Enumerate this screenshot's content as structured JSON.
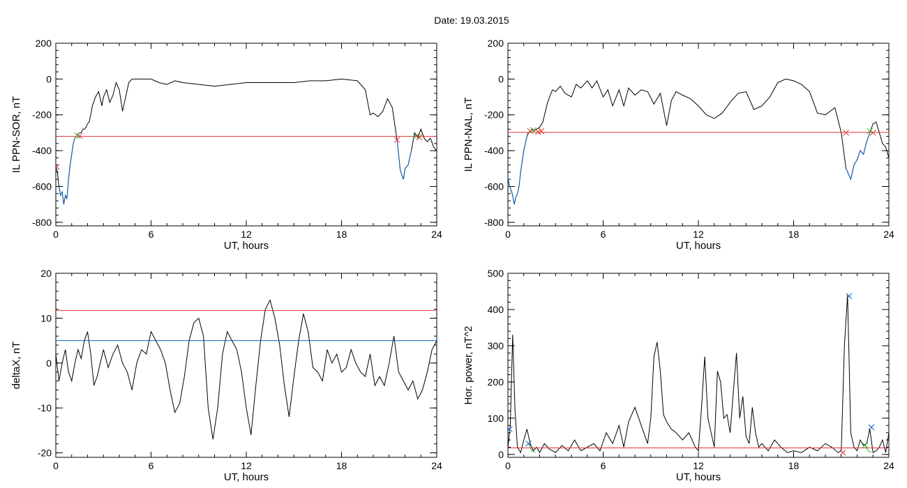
{
  "header": {
    "date_label": "Date:  19.03.2015"
  },
  "colors": {
    "curve": "#000000",
    "threshold": "#e03030",
    "blue": "#1060c0",
    "green": "#30c030",
    "frame": "#000000"
  },
  "chart_data": [
    {
      "id": "p1",
      "type": "line",
      "ylabel": "IL PPN-SOR, nT",
      "xlabel": "UT, hours",
      "xlim": [
        0,
        24
      ],
      "ylim": [
        -820,
        200
      ],
      "xticks": [
        0,
        6,
        12,
        18,
        24
      ],
      "yticks": [
        -800,
        -600,
        -400,
        -200,
        0,
        200
      ],
      "grid": false,
      "series": [
        {
          "role": "main",
          "color": "#000000",
          "x": [
            0,
            0.1,
            0.2,
            0.3,
            0.4,
            0.5,
            0.6,
            0.7,
            0.8,
            0.9,
            1.0,
            1.1,
            1.2,
            1.3,
            1.4,
            1.5,
            1.6,
            1.7,
            1.8,
            1.9,
            2.0,
            2.1,
            2.2,
            2.3,
            2.5,
            2.7,
            2.9,
            3.0,
            3.2,
            3.4,
            3.6,
            3.8,
            4.0,
            4.2,
            4.4,
            4.6,
            4.8,
            5.0,
            5.5,
            6.0,
            6.5,
            7.0,
            7.5,
            8.0,
            9.0,
            10.0,
            11.0,
            12.0,
            13.0,
            14.0,
            15.0,
            16.0,
            17.0,
            18.0,
            19.0,
            19.5,
            19.8,
            20.0,
            20.3,
            20.6,
            20.9,
            21.2,
            21.5,
            21.7,
            21.9,
            22.0,
            22.2,
            22.4,
            22.6,
            22.8,
            23.0,
            23.2,
            23.4,
            23.6,
            23.8,
            24.0
          ],
          "y": [
            -490,
            -520,
            -600,
            -650,
            -630,
            -700,
            -650,
            -670,
            -560,
            -480,
            -420,
            -360,
            -330,
            -320,
            -310,
            -300,
            -300,
            -280,
            -280,
            -270,
            -250,
            -240,
            -200,
            -150,
            -100,
            -70,
            -150,
            -100,
            -60,
            -130,
            -90,
            -20,
            -60,
            -180,
            -100,
            -20,
            0,
            0,
            0,
            0,
            -20,
            -30,
            -10,
            -20,
            -30,
            -40,
            -30,
            -20,
            -20,
            -20,
            -20,
            -10,
            -10,
            0,
            -10,
            -60,
            -200,
            -190,
            -210,
            -180,
            -110,
            -160,
            -340,
            -510,
            -560,
            -500,
            -480,
            -400,
            -300,
            -330,
            -280,
            -330,
            -350,
            -330,
            -380,
            -400
          ]
        },
        {
          "role": "below-threshold",
          "color": "#1060c0",
          "x": [
            0.2,
            0.3,
            0.4,
            0.5,
            0.6,
            0.7,
            0.8,
            0.9,
            1.0,
            1.1,
            1.2,
            1.3
          ],
          "y": [
            -600,
            -650,
            -630,
            -700,
            -650,
            -670,
            -560,
            -480,
            -420,
            -360,
            -330,
            -320
          ]
        },
        {
          "role": "below-threshold",
          "color": "#1060c0",
          "x": [
            21.5,
            21.7,
            21.9,
            22.0,
            22.2,
            22.4
          ],
          "y": [
            -340,
            -510,
            -560,
            -500,
            -480,
            -400
          ]
        },
        {
          "role": "threshold",
          "color": "#e03030",
          "x": [
            0,
            24
          ],
          "y": [
            -320,
            -320
          ]
        }
      ],
      "markers": [
        {
          "x": 0.05,
          "y": -490,
          "color": "#e03030"
        },
        {
          "x": 1.35,
          "y": -315,
          "color": "#30c030"
        },
        {
          "x": 1.5,
          "y": -318,
          "color": "#e03030"
        },
        {
          "x": 21.5,
          "y": -340,
          "color": "#e03030"
        },
        {
          "x": 22.7,
          "y": -320,
          "color": "#30c030"
        },
        {
          "x": 22.9,
          "y": -325,
          "color": "#e03030"
        }
      ]
    },
    {
      "id": "p2",
      "type": "line",
      "ylabel": "IL PPN-NAL, nT",
      "xlabel": "UT, hours",
      "xlim": [
        0,
        24
      ],
      "ylim": [
        -820,
        200
      ],
      "xticks": [
        0,
        6,
        12,
        18,
        24
      ],
      "yticks": [
        -800,
        -600,
        -400,
        -200,
        0,
        200
      ],
      "grid": false,
      "series": [
        {
          "role": "main",
          "color": "#000000",
          "x": [
            0,
            0.1,
            0.2,
            0.3,
            0.4,
            0.5,
            0.6,
            0.7,
            0.8,
            0.9,
            1.0,
            1.1,
            1.2,
            1.3,
            1.4,
            1.5,
            1.6,
            1.8,
            2.0,
            2.2,
            2.5,
            2.8,
            3.0,
            3.3,
            3.6,
            4.0,
            4.3,
            4.6,
            5.0,
            5.3,
            5.6,
            6.0,
            6.3,
            6.6,
            7.0,
            7.3,
            7.6,
            8.0,
            8.4,
            8.8,
            9.2,
            9.6,
            10.0,
            10.3,
            10.6,
            11.0,
            11.5,
            12.0,
            12.5,
            13.0,
            13.5,
            14.0,
            14.5,
            15.0,
            15.5,
            16.0,
            16.5,
            17.0,
            17.5,
            18.0,
            18.5,
            19.0,
            19.5,
            20.0,
            20.3,
            20.6,
            21.0,
            21.3,
            21.6,
            21.8,
            22.0,
            22.2,
            22.4,
            22.6,
            22.8,
            23.0,
            23.2,
            23.4,
            23.6,
            23.8,
            24.0
          ],
          "y": [
            -550,
            -600,
            -620,
            -650,
            -700,
            -660,
            -640,
            -600,
            -520,
            -460,
            -400,
            -360,
            -320,
            -300,
            -290,
            -280,
            -290,
            -280,
            -270,
            -240,
            -130,
            -60,
            -70,
            -40,
            -80,
            -100,
            -30,
            -50,
            -10,
            -50,
            -10,
            -100,
            -60,
            -150,
            -60,
            -150,
            -50,
            -90,
            -60,
            -70,
            -140,
            -80,
            -260,
            -120,
            -70,
            -90,
            -110,
            -150,
            -200,
            -220,
            -190,
            -130,
            -80,
            -70,
            -170,
            -150,
            -100,
            -20,
            0,
            -10,
            -30,
            -70,
            -190,
            -200,
            -180,
            -160,
            -300,
            -500,
            -560,
            -480,
            -450,
            -400,
            -420,
            -350,
            -300,
            -250,
            -240,
            -300,
            -360,
            -380,
            -440
          ]
        },
        {
          "role": "below-threshold",
          "color": "#1060c0",
          "x": [
            0,
            0.1,
            0.2,
            0.3,
            0.4,
            0.5,
            0.6,
            0.7,
            0.8,
            0.9,
            1.0,
            1.1,
            1.2
          ],
          "y": [
            -550,
            -600,
            -620,
            -650,
            -700,
            -660,
            -640,
            -600,
            -520,
            -460,
            -400,
            -360,
            -320
          ]
        },
        {
          "role": "below-threshold",
          "color": "#1060c0",
          "x": [
            21.3,
            21.6,
            21.8,
            22.0,
            22.2,
            22.4,
            22.6,
            22.8
          ],
          "y": [
            -500,
            -560,
            -480,
            -450,
            -400,
            -420,
            -350,
            -300
          ]
        },
        {
          "role": "threshold",
          "color": "#e03030",
          "x": [
            0,
            24
          ],
          "y": [
            -298,
            -298
          ]
        }
      ],
      "markers": [
        {
          "x": 1.4,
          "y": -290,
          "color": "#e03030"
        },
        {
          "x": 1.6,
          "y": -285,
          "color": "#30c030"
        },
        {
          "x": 1.9,
          "y": -295,
          "color": "#e03030"
        },
        {
          "x": 2.1,
          "y": -290,
          "color": "#e03030"
        },
        {
          "x": 21.3,
          "y": -300,
          "color": "#e03030"
        },
        {
          "x": 22.8,
          "y": -290,
          "color": "#30c030"
        },
        {
          "x": 23.0,
          "y": -300,
          "color": "#e03030"
        }
      ]
    },
    {
      "id": "p3",
      "type": "line",
      "ylabel": "deltaX, nT",
      "xlabel": "UT, hours",
      "xlim": [
        0,
        24
      ],
      "ylim": [
        -21,
        20
      ],
      "xticks": [
        0,
        6,
        12,
        18,
        24
      ],
      "yticks": [
        -20,
        -10,
        0,
        10,
        20
      ],
      "grid": false,
      "series": [
        {
          "role": "main",
          "color": "#000000",
          "x": [
            0,
            0.2,
            0.4,
            0.6,
            0.8,
            1.0,
            1.2,
            1.4,
            1.6,
            1.8,
            2.0,
            2.2,
            2.4,
            2.6,
            2.8,
            3.0,
            3.3,
            3.6,
            3.9,
            4.2,
            4.5,
            4.8,
            5.1,
            5.4,
            5.7,
            6.0,
            6.3,
            6.6,
            6.9,
            7.2,
            7.5,
            7.8,
            8.1,
            8.4,
            8.7,
            9.0,
            9.3,
            9.6,
            9.9,
            10.2,
            10.5,
            10.8,
            11.1,
            11.4,
            11.7,
            12.0,
            12.3,
            12.6,
            12.9,
            13.2,
            13.5,
            13.8,
            14.1,
            14.4,
            14.7,
            15.0,
            15.3,
            15.6,
            15.9,
            16.2,
            16.5,
            16.8,
            17.1,
            17.4,
            17.7,
            18.0,
            18.3,
            18.6,
            18.9,
            19.2,
            19.5,
            19.8,
            20.1,
            20.4,
            20.7,
            21.0,
            21.3,
            21.6,
            21.9,
            22.2,
            22.5,
            22.8,
            23.1,
            23.4,
            23.7,
            24.0
          ],
          "y": [
            2,
            -4,
            0,
            3,
            -2,
            -4,
            0,
            3,
            1,
            5,
            7,
            2,
            -5,
            -3,
            0,
            3,
            -1,
            2,
            4,
            0,
            -2,
            -6,
            0,
            3,
            2,
            7,
            5,
            3,
            0,
            -6,
            -11,
            -9,
            -3,
            5,
            9,
            10,
            6,
            -10,
            -17,
            -10,
            2,
            7,
            5,
            3,
            -2,
            -10,
            -16,
            -5,
            5,
            12,
            14,
            10,
            4,
            -5,
            -12,
            -3,
            5,
            11,
            7,
            -1,
            -2,
            -4,
            3,
            0,
            2,
            -2,
            -1,
            3,
            0,
            -2,
            -3,
            2,
            -5,
            -3,
            -5,
            0,
            6,
            -2,
            -4,
            -6,
            -4,
            -8,
            -6,
            -2,
            3,
            5
          ]
        },
        {
          "role": "threshold",
          "color": "#e03030",
          "x": [
            0,
            24
          ],
          "y": [
            11.7,
            11.7
          ]
        },
        {
          "role": "threshold",
          "color": "#1060c0",
          "x": [
            0,
            24
          ],
          "y": [
            5,
            5
          ]
        }
      ],
      "markers": []
    },
    {
      "id": "p4",
      "type": "line",
      "ylabel": "Hor. power, nT^2",
      "xlabel": "UT, hours",
      "xlim": [
        0,
        24
      ],
      "ylim": [
        -8,
        500
      ],
      "xticks": [
        0,
        6,
        12,
        18,
        24
      ],
      "yticks": [
        0,
        100,
        200,
        300,
        400,
        500
      ],
      "grid": false,
      "series": [
        {
          "role": "main",
          "color": "#000000",
          "x": [
            0,
            0.15,
            0.3,
            0.45,
            0.6,
            0.8,
            1.0,
            1.2,
            1.4,
            1.6,
            1.8,
            2.0,
            2.3,
            2.6,
            3.0,
            3.4,
            3.8,
            4.2,
            4.6,
            5.0,
            5.4,
            5.8,
            6.2,
            6.6,
            7.0,
            7.3,
            7.6,
            8.0,
            8.4,
            8.8,
            9.0,
            9.2,
            9.4,
            9.6,
            9.8,
            10.0,
            10.3,
            10.6,
            11.0,
            11.4,
            11.8,
            12.0,
            12.2,
            12.4,
            12.6,
            12.8,
            13.0,
            13.2,
            13.4,
            13.6,
            13.8,
            14.0,
            14.2,
            14.4,
            14.6,
            14.8,
            15.0,
            15.2,
            15.4,
            15.6,
            15.8,
            16.0,
            16.4,
            16.8,
            17.2,
            17.6,
            18.0,
            18.5,
            19.0,
            19.5,
            20.0,
            20.4,
            20.8,
            21.0,
            21.2,
            21.4,
            21.6,
            21.8,
            22.0,
            22.2,
            22.4,
            22.6,
            22.8,
            23.0,
            23.2,
            23.4,
            23.6,
            23.8,
            24.0
          ],
          "y": [
            20,
            80,
            330,
            120,
            20,
            5,
            40,
            70,
            30,
            10,
            20,
            5,
            30,
            15,
            5,
            25,
            10,
            40,
            10,
            20,
            30,
            10,
            60,
            30,
            80,
            20,
            90,
            130,
            80,
            30,
            100,
            270,
            310,
            230,
            110,
            90,
            70,
            60,
            40,
            60,
            20,
            10,
            130,
            270,
            100,
            60,
            20,
            230,
            200,
            100,
            110,
            60,
            170,
            280,
            100,
            160,
            50,
            30,
            130,
            60,
            20,
            30,
            10,
            40,
            20,
            5,
            10,
            5,
            20,
            10,
            30,
            20,
            5,
            10,
            300,
            440,
            60,
            20,
            10,
            40,
            25,
            30,
            70,
            5,
            10,
            20,
            40,
            5,
            60
          ]
        },
        {
          "role": "highlight",
          "color": "#30c030",
          "x": [
            1.3,
            1.5,
            1.7
          ],
          "y": [
            30,
            10,
            5
          ]
        },
        {
          "role": "highlight",
          "color": "#30c030",
          "x": [
            22.5,
            22.7,
            22.9
          ],
          "y": [
            25,
            10,
            5
          ]
        },
        {
          "role": "threshold",
          "color": "#e03030",
          "x": [
            0,
            24
          ],
          "y": [
            18,
            18
          ]
        }
      ],
      "markers": [
        {
          "x": 0.1,
          "y": 70,
          "color": "#1060c0"
        },
        {
          "x": 1.3,
          "y": 30,
          "color": "#1060c0"
        },
        {
          "x": 21.5,
          "y": 437,
          "color": "#1060c0"
        },
        {
          "x": 21.1,
          "y": 5,
          "color": "#e03030"
        },
        {
          "x": 22.9,
          "y": 75,
          "color": "#1060c0"
        },
        {
          "x": 22.5,
          "y": 25,
          "color": "#30c030"
        }
      ]
    }
  ]
}
